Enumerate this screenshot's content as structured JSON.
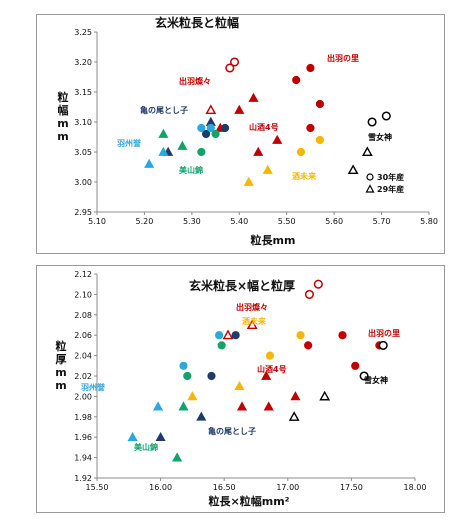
{
  "colors": {
    "dewa_no_sato": "#c00000",
    "dewa_sansan": "#c00000",
    "yuki_megami": "#000000",
    "sakemirai": "#f5b700",
    "sansan_homare": "#c00000",
    "miyamanishiki": "#10a36a",
    "dewa_homare": "#2aa8e0",
    "kamenoo_toshiko": "#1f3b6b"
  },
  "chart_data": [
    {
      "type": "scatter",
      "title": "玄米粒長と粒幅",
      "xlabel": "粒長mm",
      "ylabel": "粒幅mm",
      "xlim": [
        5.1,
        5.8
      ],
      "ylim": [
        2.95,
        3.25
      ],
      "xticks": [
        "5.10",
        "5.20",
        "5.30",
        "5.40",
        "5.50",
        "5.60",
        "5.70",
        "5.80"
      ],
      "yticks": [
        "2.95",
        "3.00",
        "3.05",
        "3.10",
        "3.15",
        "3.20",
        "3.25"
      ],
      "legend": {
        "position": "bottom-right",
        "entries": [
          {
            "marker": "circle",
            "label": "30年産"
          },
          {
            "marker": "triangle",
            "label": "29年産"
          }
        ]
      },
      "group_labels": [
        {
          "key": "dewa_no_sato",
          "text": "出羽の里"
        },
        {
          "key": "dewa_sansan",
          "text": "出羽燦々"
        },
        {
          "key": "kamenoo_toshiko",
          "text": "亀の尾とし子"
        },
        {
          "key": "dewa_homare",
          "text": "羽州誉"
        },
        {
          "key": "miyamanishiki",
          "text": "美山錦"
        },
        {
          "key": "sansan_homare",
          "text": "山酒4号"
        },
        {
          "key": "sakemirai",
          "text": "酒未来"
        },
        {
          "key": "yuki_megami",
          "text": "雪女神"
        }
      ],
      "series": [
        {
          "key": "dewa_sansan",
          "points": [
            {
              "x": 5.39,
              "y": 3.2,
              "m": "circle",
              "f": false
            },
            {
              "x": 5.38,
              "y": 3.19,
              "m": "circle",
              "f": false
            },
            {
              "x": 5.34,
              "y": 3.12,
              "m": "triangle",
              "f": false
            }
          ]
        },
        {
          "key": "dewa_no_sato",
          "points": [
            {
              "x": 5.55,
              "y": 3.19,
              "m": "circle",
              "f": true
            },
            {
              "x": 5.52,
              "y": 3.17,
              "m": "circle",
              "f": true
            },
            {
              "x": 5.57,
              "y": 3.13,
              "m": "circle",
              "f": true
            },
            {
              "x": 5.43,
              "y": 3.14,
              "m": "triangle",
              "f": true
            },
            {
              "x": 5.4,
              "y": 3.12,
              "m": "triangle",
              "f": true
            }
          ]
        },
        {
          "key": "sansan_homare",
          "points": [
            {
              "x": 5.36,
              "y": 3.09,
              "m": "triangle",
              "f": true
            },
            {
              "x": 5.44,
              "y": 3.05,
              "m": "triangle",
              "f": true
            },
            {
              "x": 5.48,
              "y": 3.07,
              "m": "triangle",
              "f": true
            },
            {
              "x": 5.55,
              "y": 3.09,
              "m": "circle",
              "f": true
            }
          ]
        },
        {
          "key": "sakemirai",
          "points": [
            {
              "x": 5.53,
              "y": 3.05,
              "m": "circle",
              "f": true
            },
            {
              "x": 5.57,
              "y": 3.07,
              "m": "circle",
              "f": true
            },
            {
              "x": 5.42,
              "y": 3.0,
              "m": "triangle",
              "f": true
            },
            {
              "x": 5.46,
              "y": 3.02,
              "m": "triangle",
              "f": true
            }
          ]
        },
        {
          "key": "kamenoo_toshiko",
          "points": [
            {
              "x": 5.33,
              "y": 3.08,
              "m": "circle",
              "f": true
            },
            {
              "x": 5.37,
              "y": 3.09,
              "m": "circle",
              "f": true
            },
            {
              "x": 5.25,
              "y": 3.05,
              "m": "triangle",
              "f": true
            },
            {
              "x": 5.34,
              "y": 3.1,
              "m": "triangle",
              "f": true
            }
          ]
        },
        {
          "key": "dewa_homare",
          "points": [
            {
              "x": 5.32,
              "y": 3.09,
              "m": "circle",
              "f": true
            },
            {
              "x": 5.34,
              "y": 3.09,
              "m": "circle",
              "f": true
            },
            {
              "x": 5.24,
              "y": 3.05,
              "m": "triangle",
              "f": true
            },
            {
              "x": 5.21,
              "y": 3.03,
              "m": "triangle",
              "f": true
            }
          ]
        },
        {
          "key": "miyamanishiki",
          "points": [
            {
              "x": 5.32,
              "y": 3.05,
              "m": "circle",
              "f": true
            },
            {
              "x": 5.35,
              "y": 3.08,
              "m": "circle",
              "f": true
            },
            {
              "x": 5.24,
              "y": 3.08,
              "m": "triangle",
              "f": true
            },
            {
              "x": 5.28,
              "y": 3.06,
              "m": "triangle",
              "f": true
            }
          ]
        },
        {
          "key": "yuki_megami",
          "points": [
            {
              "x": 5.71,
              "y": 3.11,
              "m": "circle",
              "f": false
            },
            {
              "x": 5.68,
              "y": 3.1,
              "m": "circle",
              "f": false
            },
            {
              "x": 5.67,
              "y": 3.05,
              "m": "triangle",
              "f": false
            },
            {
              "x": 5.64,
              "y": 3.02,
              "m": "triangle",
              "f": false
            }
          ]
        }
      ]
    },
    {
      "type": "scatter",
      "title": "玄米粒長×幅と粒厚",
      "xlabel": "粒長×粒幅mm²",
      "ylabel": "粒厚mm",
      "xlim": [
        15.5,
        18.0
      ],
      "ylim": [
        1.92,
        2.12
      ],
      "xticks": [
        "15.50",
        "16.00",
        "16.50",
        "17.00",
        "17.50",
        "18.00"
      ],
      "yticks": [
        "1.92",
        "1.94",
        "1.96",
        "1.98",
        "2.00",
        "2.02",
        "2.04",
        "2.06",
        "2.08",
        "2.10",
        "2.12"
      ],
      "group_labels": [
        {
          "key": "dewa_sansan",
          "text": "出羽燦々"
        },
        {
          "key": "dewa_no_sato",
          "text": "出羽の里"
        },
        {
          "key": "sakemirai",
          "text": "酒未来"
        },
        {
          "key": "sansan_homare",
          "text": "山酒4号"
        },
        {
          "key": "yuki_megami",
          "text": "雪女神"
        },
        {
          "key": "dewa_homare",
          "text": "羽州誉"
        },
        {
          "key": "kamenoo_toshiko",
          "text": "亀の尾とし子"
        },
        {
          "key": "miyamanishiki",
          "text": "美山錦"
        }
      ],
      "series": [
        {
          "key": "dewa_sansan",
          "points": [
            {
              "x": 17.24,
              "y": 2.11,
              "m": "circle",
              "f": false
            },
            {
              "x": 17.17,
              "y": 2.1,
              "m": "circle",
              "f": false
            },
            {
              "x": 16.72,
              "y": 2.07,
              "m": "triangle",
              "f": false
            },
            {
              "x": 16.53,
              "y": 2.06,
              "m": "triangle",
              "f": false
            }
          ]
        },
        {
          "key": "dewa_no_sato",
          "points": [
            {
              "x": 17.43,
              "y": 2.06,
              "m": "circle",
              "f": true
            },
            {
              "x": 17.72,
              "y": 2.05,
              "m": "circle",
              "f": true
            },
            {
              "x": 17.53,
              "y": 2.03,
              "m": "circle",
              "f": true
            },
            {
              "x": 16.85,
              "y": 1.99,
              "m": "triangle",
              "f": true
            },
            {
              "x": 17.06,
              "y": 2.0,
              "m": "triangle",
              "f": true
            }
          ]
        },
        {
          "key": "sansan_homare",
          "points": [
            {
              "x": 17.16,
              "y": 2.05,
              "m": "circle",
              "f": true
            },
            {
              "x": 16.83,
              "y": 2.02,
              "m": "triangle",
              "f": true
            },
            {
              "x": 16.64,
              "y": 1.99,
              "m": "triangle",
              "f": true
            }
          ]
        },
        {
          "key": "sakemirai",
          "points": [
            {
              "x": 17.1,
              "y": 2.06,
              "m": "circle",
              "f": true
            },
            {
              "x": 16.86,
              "y": 2.04,
              "m": "circle",
              "f": true
            },
            {
              "x": 16.25,
              "y": 2.0,
              "m": "triangle",
              "f": true
            },
            {
              "x": 16.62,
              "y": 2.01,
              "m": "triangle",
              "f": true
            }
          ]
        },
        {
          "key": "kamenoo_toshiko",
          "points": [
            {
              "x": 16.59,
              "y": 2.06,
              "m": "circle",
              "f": true
            },
            {
              "x": 16.4,
              "y": 2.02,
              "m": "circle",
              "f": true
            },
            {
              "x": 16.0,
              "y": 1.96,
              "m": "triangle",
              "f": true
            },
            {
              "x": 16.32,
              "y": 1.98,
              "m": "triangle",
              "f": true
            }
          ]
        },
        {
          "key": "dewa_homare",
          "points": [
            {
              "x": 16.46,
              "y": 2.06,
              "m": "circle",
              "f": true
            },
            {
              "x": 16.18,
              "y": 2.03,
              "m": "circle",
              "f": true
            },
            {
              "x": 15.98,
              "y": 1.99,
              "m": "triangle",
              "f": true
            },
            {
              "x": 15.78,
              "y": 1.96,
              "m": "triangle",
              "f": true
            }
          ]
        },
        {
          "key": "miyamanishiki",
          "points": [
            {
              "x": 16.48,
              "y": 2.05,
              "m": "circle",
              "f": true
            },
            {
              "x": 16.21,
              "y": 2.02,
              "m": "circle",
              "f": true
            },
            {
              "x": 16.18,
              "y": 1.99,
              "m": "triangle",
              "f": true
            },
            {
              "x": 16.13,
              "y": 1.94,
              "m": "triangle",
              "f": true
            }
          ]
        },
        {
          "key": "yuki_megami",
          "points": [
            {
              "x": 17.75,
              "y": 2.05,
              "m": "circle",
              "f": false
            },
            {
              "x": 17.6,
              "y": 2.02,
              "m": "circle",
              "f": false
            },
            {
              "x": 17.29,
              "y": 2.0,
              "m": "triangle",
              "f": false
            },
            {
              "x": 17.05,
              "y": 1.98,
              "m": "triangle",
              "f": false
            }
          ]
        }
      ]
    }
  ]
}
